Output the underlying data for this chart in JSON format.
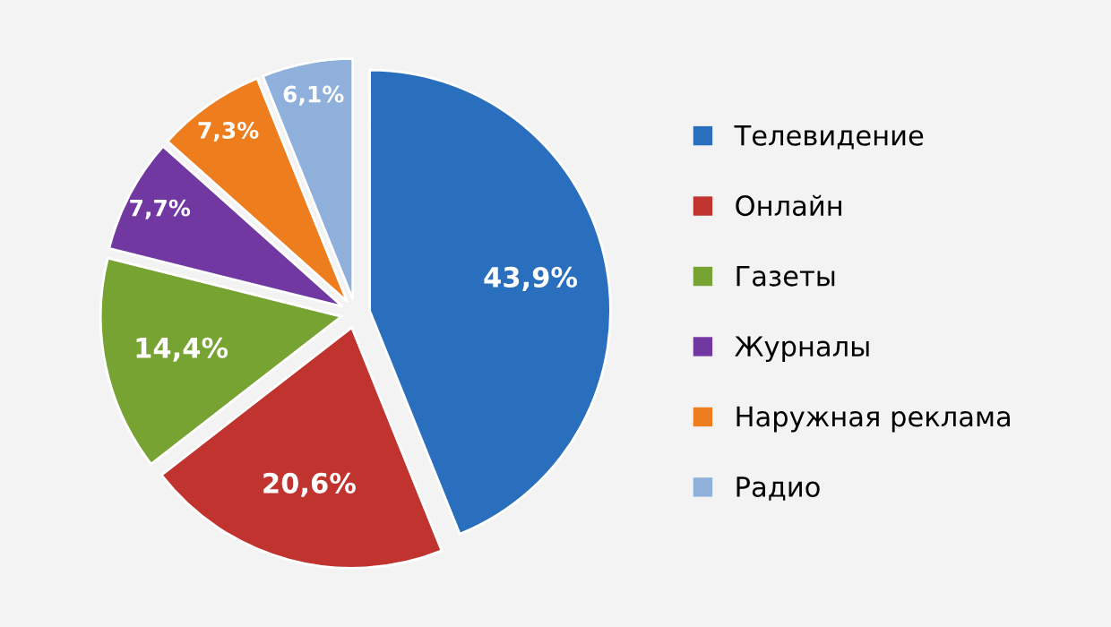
{
  "chart_data": {
    "type": "pie",
    "categories": [
      "Телевидение",
      "Онлайн",
      "Газеты",
      "Журналы",
      "Наружная реклама",
      "Радио"
    ],
    "values": [
      43.9,
      20.6,
      14.4,
      7.7,
      7.3,
      6.1
    ],
    "value_labels": [
      "43,9%",
      "20,6%",
      "14,4%",
      "7,7%",
      "7,3%",
      "6,1%"
    ],
    "colors": [
      "#2a6fbd",
      "#c0332f",
      "#76a332",
      "#7038a0",
      "#ee7d1e",
      "#8eb0da"
    ],
    "legend": "right"
  }
}
